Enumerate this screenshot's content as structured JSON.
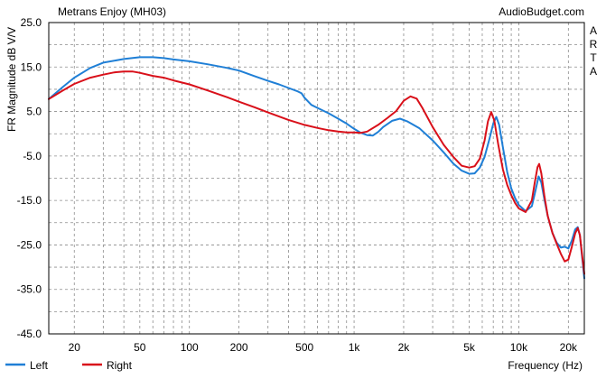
{
  "header": {
    "title": "Metrans Enjoy (MH03)",
    "site": "AudioBudget.com",
    "side_text": "ARTA"
  },
  "chart_data": {
    "type": "line",
    "title": "Metrans Enjoy (MH03)",
    "xlabel": "Frequency (Hz)",
    "ylabel": "FR Magnitude dB V/V",
    "x_scale": "log",
    "xlim": [
      14,
      25000
    ],
    "ylim": [
      -45,
      25
    ],
    "grid": true,
    "legend_position": "bottom-left",
    "y_ticks": [
      "25.0",
      "15.0",
      "5.0",
      "-5.0",
      "-15.0",
      "-25.0",
      "-35.0",
      "-45.0"
    ],
    "x_ticks": [
      {
        "value": 20,
        "label": "20"
      },
      {
        "value": 50,
        "label": "50"
      },
      {
        "value": 100,
        "label": "100"
      },
      {
        "value": 200,
        "label": "200"
      },
      {
        "value": 500,
        "label": "500"
      },
      {
        "value": 1000,
        "label": "1k"
      },
      {
        "value": 2000,
        "label": "2k"
      },
      {
        "value": 5000,
        "label": "5k"
      },
      {
        "value": 10000,
        "label": "10k"
      },
      {
        "value": 20000,
        "label": "20k"
      }
    ],
    "series": [
      {
        "name": "Left",
        "color": "#1f7fd6",
        "points": [
          [
            14,
            7.8
          ],
          [
            17,
            10.5
          ],
          [
            20,
            12.6
          ],
          [
            25,
            14.8
          ],
          [
            30,
            16.0
          ],
          [
            40,
            16.8
          ],
          [
            50,
            17.2
          ],
          [
            60,
            17.2
          ],
          [
            70,
            17.0
          ],
          [
            80,
            16.7
          ],
          [
            100,
            16.3
          ],
          [
            130,
            15.6
          ],
          [
            170,
            14.8
          ],
          [
            200,
            14.2
          ],
          [
            250,
            12.9
          ],
          [
            300,
            11.9
          ],
          [
            350,
            11.1
          ],
          [
            400,
            10.3
          ],
          [
            450,
            9.6
          ],
          [
            480,
            9.1
          ],
          [
            500,
            8.1
          ],
          [
            550,
            6.5
          ],
          [
            600,
            5.8
          ],
          [
            700,
            4.6
          ],
          [
            800,
            3.4
          ],
          [
            900,
            2.3
          ],
          [
            1000,
            1.1
          ],
          [
            1100,
            0.2
          ],
          [
            1200,
            -0.3
          ],
          [
            1300,
            -0.4
          ],
          [
            1400,
            0.4
          ],
          [
            1500,
            1.5
          ],
          [
            1700,
            2.9
          ],
          [
            1900,
            3.4
          ],
          [
            2100,
            2.8
          ],
          [
            2500,
            1.2
          ],
          [
            3000,
            -1.5
          ],
          [
            3500,
            -4.2
          ],
          [
            4000,
            -6.7
          ],
          [
            4500,
            -8.3
          ],
          [
            5000,
            -9.0
          ],
          [
            5400,
            -8.9
          ],
          [
            5800,
            -7.6
          ],
          [
            6200,
            -5.2
          ],
          [
            6600,
            -1.5
          ],
          [
            7000,
            2.3
          ],
          [
            7300,
            3.8
          ],
          [
            7600,
            2.0
          ],
          [
            8000,
            -3.0
          ],
          [
            8500,
            -8.6
          ],
          [
            9000,
            -12.3
          ],
          [
            9500,
            -14.5
          ],
          [
            10000,
            -16.0
          ],
          [
            11000,
            -17.4
          ],
          [
            12000,
            -16.3
          ],
          [
            12500,
            -13.5
          ],
          [
            13200,
            -9.6
          ],
          [
            13700,
            -11.0
          ],
          [
            14300,
            -14.8
          ],
          [
            15000,
            -18.5
          ],
          [
            16000,
            -22.3
          ],
          [
            17000,
            -24.5
          ],
          [
            18000,
            -25.6
          ],
          [
            19000,
            -25.4
          ],
          [
            20000,
            -25.8
          ],
          [
            21000,
            -24.0
          ],
          [
            22000,
            -21.5
          ],
          [
            22800,
            -21.0
          ],
          [
            23500,
            -22.8
          ],
          [
            24200,
            -27.5
          ],
          [
            25000,
            -32.5
          ]
        ]
      },
      {
        "name": "Right",
        "color": "#d9101a",
        "points": [
          [
            14,
            7.8
          ],
          [
            17,
            9.7
          ],
          [
            20,
            11.2
          ],
          [
            25,
            12.6
          ],
          [
            30,
            13.3
          ],
          [
            35,
            13.8
          ],
          [
            40,
            14.0
          ],
          [
            45,
            14.0
          ],
          [
            50,
            13.7
          ],
          [
            60,
            13.0
          ],
          [
            70,
            12.6
          ],
          [
            80,
            12.0
          ],
          [
            100,
            11.1
          ],
          [
            130,
            9.7
          ],
          [
            170,
            8.2
          ],
          [
            200,
            7.2
          ],
          [
            250,
            5.9
          ],
          [
            300,
            4.8
          ],
          [
            400,
            3.1
          ],
          [
            500,
            2.0
          ],
          [
            600,
            1.3
          ],
          [
            700,
            0.8
          ],
          [
            800,
            0.5
          ],
          [
            900,
            0.3
          ],
          [
            1000,
            0.3
          ],
          [
            1100,
            0.2
          ],
          [
            1200,
            0.5
          ],
          [
            1400,
            2.0
          ],
          [
            1600,
            3.6
          ],
          [
            1800,
            5.1
          ],
          [
            2000,
            7.4
          ],
          [
            2200,
            8.4
          ],
          [
            2400,
            7.9
          ],
          [
            2600,
            5.8
          ],
          [
            3000,
            1.5
          ],
          [
            3500,
            -2.5
          ],
          [
            4000,
            -5.2
          ],
          [
            4500,
            -7.2
          ],
          [
            5000,
            -7.6
          ],
          [
            5400,
            -7.3
          ],
          [
            5800,
            -5.6
          ],
          [
            6200,
            -1.5
          ],
          [
            6500,
            2.8
          ],
          [
            6800,
            4.9
          ],
          [
            7100,
            3.0
          ],
          [
            7500,
            -2.3
          ],
          [
            8000,
            -8.0
          ],
          [
            8500,
            -11.5
          ],
          [
            9000,
            -13.8
          ],
          [
            9500,
            -15.6
          ],
          [
            10000,
            -16.8
          ],
          [
            11000,
            -17.6
          ],
          [
            12000,
            -15.0
          ],
          [
            12500,
            -11.0
          ],
          [
            13000,
            -7.5
          ],
          [
            13300,
            -6.8
          ],
          [
            13700,
            -8.9
          ],
          [
            14300,
            -14.0
          ],
          [
            15000,
            -18.5
          ],
          [
            16000,
            -22.3
          ],
          [
            17000,
            -24.8
          ],
          [
            18000,
            -27.0
          ],
          [
            19000,
            -28.7
          ],
          [
            20000,
            -28.3
          ],
          [
            21000,
            -25.4
          ],
          [
            22000,
            -22.4
          ],
          [
            22800,
            -21.2
          ],
          [
            23500,
            -22.8
          ],
          [
            24200,
            -27.0
          ],
          [
            25000,
            -31.5
          ]
        ]
      }
    ]
  }
}
